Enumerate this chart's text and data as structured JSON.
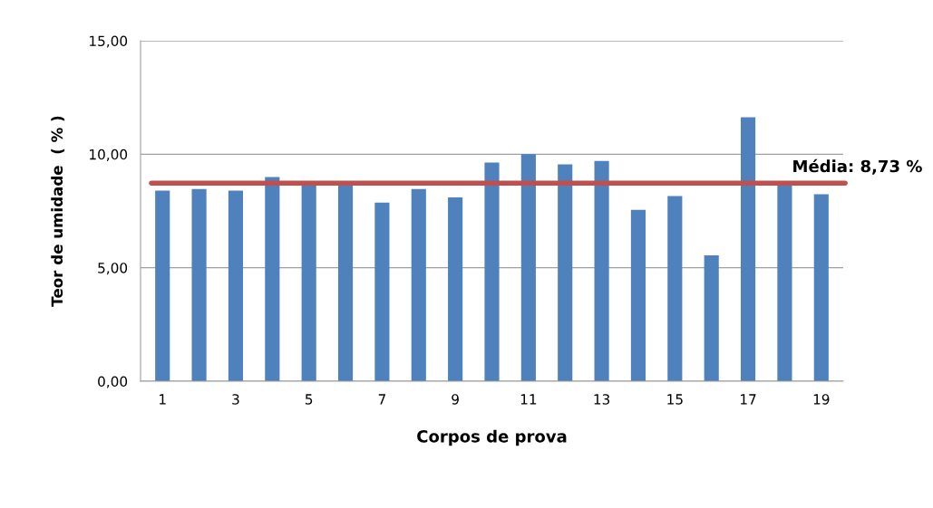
{
  "chart_data": {
    "type": "bar",
    "xlabel": "Corpos de prova",
    "ylabel": "Teor de umidade  ( % )",
    "categories": [
      "1",
      null,
      "3",
      null,
      "5",
      null,
      "7",
      null,
      "9",
      null,
      "11",
      null,
      "13",
      null,
      "15",
      null,
      "17",
      null,
      "19"
    ],
    "values": [
      8.4,
      8.47,
      8.4,
      9.0,
      8.7,
      8.7,
      7.87,
      8.47,
      8.1,
      9.63,
      10.0,
      9.55,
      9.7,
      7.55,
      8.16,
      5.55,
      11.63,
      8.7,
      8.24
    ],
    "color": "#4f81bd",
    "ylim": [
      0,
      15
    ],
    "yticks": [
      {
        "value": 0,
        "label": "0,00"
      },
      {
        "value": 5,
        "label": "5,00"
      },
      {
        "value": 10,
        "label": "10,00"
      },
      {
        "value": 15,
        "label": "15,00"
      }
    ],
    "grid": "y",
    "ref_lines": [
      {
        "axis": "y",
        "value": 8.73,
        "label": "Média: 8,73 %",
        "color": "#c0504d"
      }
    ]
  }
}
